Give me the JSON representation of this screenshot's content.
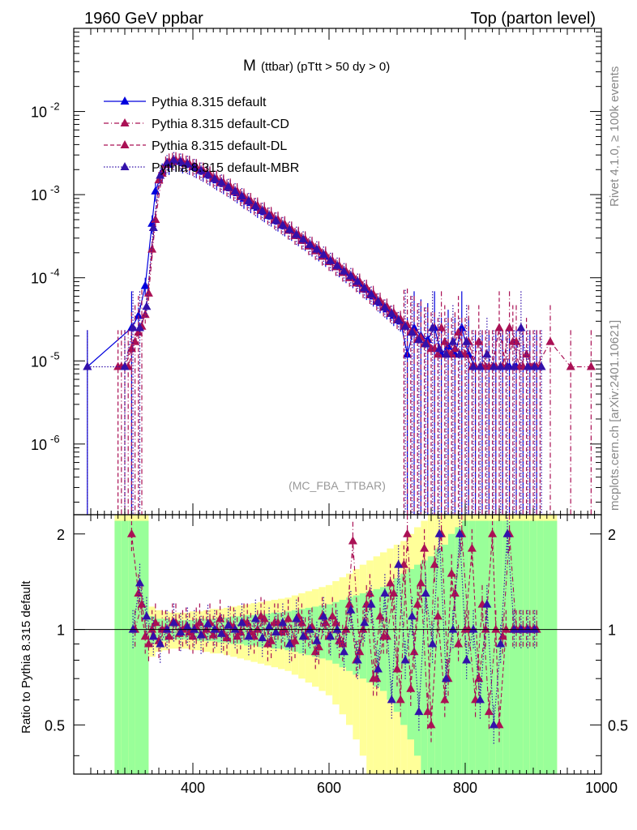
{
  "header": {
    "left_label": "1960 GeV ppbar",
    "right_label": "Top (parton level)"
  },
  "side_labels": {
    "rivet": "Rivet 4.1.0, ≥ 100k events",
    "mcplots": "mcplots.cern.ch [arXiv:2401.10621]"
  },
  "chart_data": {
    "type": "line",
    "title_main": "M",
    "title_sub": "(ttbar) (pTtt > 50 dy > 0)",
    "watermark": "(MC_FBA_TTBAR)",
    "xlabel": "",
    "ylabel": "",
    "xlim": [
      225,
      1000
    ],
    "ylim_log10": [
      -6.85,
      -1.0
    ],
    "x_ticks": [
      "400",
      "600",
      "800",
      "1000"
    ],
    "y_ticks": [
      "10^-6",
      "10^-5",
      "10^-4",
      "10^-3",
      "10^-2"
    ],
    "legend_position": "top-left",
    "series": [
      {
        "name": "Pythia 8.315 default",
        "color": "#0000dd",
        "style": "solid",
        "x": [
          245,
          310,
          320,
          330,
          340,
          345,
          355,
          365,
          375,
          385,
          395,
          405,
          415,
          425,
          435,
          445,
          455,
          465,
          475,
          485,
          495,
          505,
          515,
          525,
          535,
          545,
          555,
          565,
          575,
          585,
          595,
          605,
          615,
          625,
          635,
          645,
          655,
          665,
          675,
          685,
          695,
          705,
          715,
          725,
          735,
          745,
          755,
          765,
          775,
          785,
          795,
          805,
          815,
          825,
          835,
          845,
          855,
          865,
          875,
          885,
          895,
          905
        ],
        "y": [
          8.5e-06,
          2.5e-05,
          3.5e-05,
          8e-05,
          0.00045,
          0.0011,
          0.0019,
          0.0023,
          0.0025,
          0.0024,
          0.0023,
          0.0021,
          0.0019,
          0.0017,
          0.0015,
          0.00135,
          0.0012,
          0.00105,
          0.0009,
          0.0008,
          0.0007,
          0.00062,
          0.00055,
          0.00048,
          0.00042,
          0.00037,
          0.00032,
          0.00028,
          0.00024,
          0.00021,
          0.00018,
          0.00016,
          0.000135,
          0.000115,
          0.0001,
          8.5e-05,
          7.2e-05,
          6e-05,
          5e-05,
          4.2e-05,
          3.5e-05,
          3e-05,
          1.2e-05,
          2.5e-05,
          2e-05,
          1.8e-05,
          2.5e-05,
          1.2e-05,
          1.5e-05,
          1.2e-05,
          2.5e-05,
          1.2e-05,
          8.5e-06,
          8.5e-06,
          8.5e-06,
          8.5e-06,
          8.5e-06,
          8.5e-06,
          8.5e-06,
          8.5e-06,
          8.5e-06,
          8.5e-06
        ]
      },
      {
        "name": "Pythia 8.315 default-CD",
        "color": "#aa1155",
        "style": "dashdot",
        "x": [
          295,
          305,
          315,
          325,
          335,
          345,
          355,
          365,
          375,
          385,
          395,
          405,
          415,
          425,
          435,
          445,
          455,
          465,
          475,
          485,
          495,
          505,
          515,
          525,
          535,
          545,
          555,
          565,
          575,
          585,
          595,
          605,
          615,
          625,
          635,
          645,
          655,
          665,
          675,
          685,
          695,
          705,
          715,
          725,
          735,
          745,
          755,
          765,
          775,
          785,
          795,
          805,
          815,
          825,
          835,
          845,
          855,
          865,
          875,
          885,
          895,
          905,
          925,
          955,
          985
        ],
        "y": [
          8.5e-06,
          8.5e-06,
          1.7e-05,
          2.6e-05,
          6.5e-05,
          0.0005,
          0.0018,
          0.0025,
          0.0026,
          0.0025,
          0.00235,
          0.00215,
          0.00195,
          0.00175,
          0.00155,
          0.0014,
          0.00125,
          0.0011,
          0.00095,
          0.00084,
          0.00074,
          0.00065,
          0.00057,
          0.0005,
          0.00044,
          0.00038,
          0.00033,
          0.00029,
          0.00025,
          0.00022,
          0.00019,
          0.00016,
          0.00014,
          0.00012,
          0.000105,
          9e-05,
          7.6e-05,
          6.4e-05,
          5.3e-05,
          4.5e-05,
          3.8e-05,
          3.2e-05,
          2.7e-05,
          2.2e-05,
          1.9e-05,
          1.6e-05,
          1.4e-05,
          2.5e-05,
          1.2e-05,
          1.4e-05,
          1.2e-05,
          1.7e-05,
          8.5e-06,
          8.5e-06,
          8.5e-06,
          8.5e-06,
          8.5e-06,
          2.5e-05,
          1.7e-05,
          8.5e-06,
          8.5e-06,
          8.5e-06,
          1.7e-05,
          8.5e-06,
          8.5e-06
        ]
      },
      {
        "name": "Pythia 8.315 default-DL",
        "color": "#aa1155",
        "style": "dashed",
        "x": [
          290,
          300,
          310,
          320,
          330,
          340,
          350,
          360,
          370,
          380,
          390,
          400,
          410,
          420,
          430,
          440,
          450,
          460,
          470,
          480,
          490,
          500,
          510,
          520,
          530,
          540,
          550,
          560,
          570,
          580,
          590,
          600,
          610,
          620,
          630,
          640,
          650,
          660,
          670,
          680,
          690,
          700,
          710,
          720,
          730,
          740,
          750,
          760,
          770,
          780,
          790,
          800,
          810,
          820,
          830,
          840,
          850,
          860,
          870,
          880,
          890,
          900,
          910
        ],
        "y": [
          8.5e-06,
          8.5e-06,
          1.4e-05,
          2.2e-05,
          3.6e-05,
          0.00022,
          0.0015,
          0.0023,
          0.00255,
          0.0025,
          0.00235,
          0.00215,
          0.00195,
          0.00175,
          0.00155,
          0.00138,
          0.00122,
          0.00108,
          0.00094,
          0.00083,
          0.00073,
          0.00064,
          0.00056,
          0.00049,
          0.00043,
          0.00037,
          0.00032,
          0.00028,
          0.00024,
          0.00021,
          0.00018,
          0.000155,
          0.000135,
          0.000115,
          0.0001,
          8.6e-05,
          7.3e-05,
          6.2e-05,
          5.2e-05,
          4.4e-05,
          3.7e-05,
          3.1e-05,
          2.6e-05,
          2.2e-05,
          1.8e-05,
          1.6e-05,
          1.4e-05,
          1.2e-05,
          1.7e-05,
          1.2e-05,
          2.2e-05,
          1.2e-05,
          8.5e-06,
          1.7e-05,
          8.5e-06,
          8.5e-06,
          2.5e-05,
          8.5e-06,
          1.7e-05,
          8.5e-06,
          1.2e-05,
          8.5e-06,
          8.5e-06
        ]
      },
      {
        "name": "Pythia 8.315 default-MBR",
        "color": "#3311aa",
        "style": "dotted",
        "x": [
          245,
          300,
          312,
          322,
          332,
          342,
          352,
          362,
          372,
          382,
          392,
          402,
          412,
          422,
          432,
          442,
          452,
          462,
          472,
          482,
          492,
          502,
          512,
          522,
          532,
          542,
          552,
          562,
          572,
          582,
          592,
          602,
          612,
          622,
          632,
          642,
          652,
          662,
          672,
          682,
          692,
          702,
          712,
          722,
          732,
          742,
          752,
          762,
          772,
          782,
          792,
          802,
          812,
          822,
          832,
          842,
          852,
          862,
          872,
          882,
          892,
          902,
          912
        ],
        "y": [
          8.5e-06,
          8.5e-06,
          2.5e-05,
          2.5e-05,
          4.5e-05,
          0.0004,
          0.0017,
          0.0024,
          0.0026,
          0.0025,
          0.00235,
          0.00215,
          0.00195,
          0.00175,
          0.00155,
          0.0014,
          0.00124,
          0.0011,
          0.00096,
          0.00084,
          0.00073,
          0.00064,
          0.00056,
          0.00049,
          0.00043,
          0.00038,
          0.00033,
          0.00029,
          0.00025,
          0.00022,
          0.00019,
          0.00016,
          0.00014,
          0.00012,
          0.000105,
          9e-05,
          7.5e-05,
          6.3e-05,
          5.2e-05,
          4.4e-05,
          3.7e-05,
          3.1e-05,
          2.6e-05,
          2.2e-05,
          1.8e-05,
          1.6e-05,
          2.5e-05,
          1.4e-05,
          1.2e-05,
          1.7e-05,
          1.2e-05,
          1.7e-05,
          8.5e-06,
          8.5e-06,
          1.2e-05,
          8.5e-06,
          8.5e-06,
          8.5e-06,
          8.5e-06,
          2.5e-05,
          8.5e-06,
          8.5e-06,
          8.5e-06
        ]
      }
    ],
    "ratio": {
      "ylabel": "Ratio to Pythia 8.315 default",
      "ylim": [
        0.35,
        2.3
      ],
      "y_ticks": [
        "0.5",
        "1",
        "2"
      ],
      "x_ticks": [
        "400",
        "600",
        "800",
        "1000"
      ],
      "band_x": [
        290,
        300,
        310,
        320,
        330,
        340,
        350,
        360,
        370,
        380,
        390,
        400,
        410,
        420,
        430,
        440,
        450,
        460,
        470,
        480,
        490,
        500,
        510,
        520,
        530,
        540,
        550,
        560,
        570,
        580,
        590,
        600,
        610,
        620,
        630,
        640,
        650,
        660,
        670,
        680,
        690,
        700,
        710,
        720,
        730,
        740,
        750,
        760,
        770,
        780,
        790,
        800,
        810,
        820,
        830,
        840,
        850,
        860,
        870,
        880,
        890,
        900,
        910,
        920,
        930
      ],
      "band_green": [
        1.2,
        1.2,
        1.2,
        1.2,
        1.2,
        0.1,
        0.08,
        0.08,
        0.07,
        0.07,
        0.07,
        0.07,
        0.08,
        0.08,
        0.08,
        0.09,
        0.09,
        0.1,
        0.1,
        0.11,
        0.11,
        0.12,
        0.12,
        0.13,
        0.13,
        0.14,
        0.15,
        0.16,
        0.17,
        0.18,
        0.19,
        0.2,
        0.22,
        0.24,
        0.26,
        0.28,
        0.3,
        0.32,
        0.34,
        0.36,
        0.4,
        0.45,
        0.5,
        0.55,
        0.6,
        0.65,
        0.7,
        0.8,
        0.85,
        1.0,
        1.1,
        1.2,
        1.2,
        1.2,
        1.2,
        1.2,
        1.2,
        1.2,
        1.2,
        1.2,
        1.2,
        1.2,
        1.2,
        1.2,
        1.2
      ],
      "band_yellow": [
        2.2,
        2.2,
        2.2,
        2.2,
        2.2,
        0.18,
        0.15,
        0.14,
        0.13,
        0.13,
        0.13,
        0.14,
        0.14,
        0.15,
        0.16,
        0.16,
        0.17,
        0.18,
        0.19,
        0.2,
        0.21,
        0.22,
        0.23,
        0.24,
        0.25,
        0.26,
        0.28,
        0.3,
        0.32,
        0.34,
        0.36,
        0.38,
        0.42,
        0.46,
        0.5,
        0.55,
        0.6,
        0.65,
        0.7,
        0.75,
        0.8,
        0.85,
        0.9,
        1.0,
        1.1,
        1.2,
        1.3,
        1.4,
        1.5,
        1.7,
        2.0,
        2.2,
        2.2,
        2.2,
        2.2,
        2.2,
        2.2,
        2.2,
        2.2,
        2.2,
        2.2,
        2.2,
        2.2,
        2.2,
        2.2
      ],
      "series": [
        {
          "name": "default-CD",
          "color": "#aa1155",
          "style": "dashdot",
          "x": [
            315,
            325,
            335,
            345,
            355,
            365,
            375,
            385,
            395,
            405,
            415,
            425,
            435,
            445,
            455,
            465,
            475,
            485,
            495,
            505,
            515,
            525,
            535,
            545,
            555,
            565,
            575,
            585,
            595,
            605,
            615,
            625,
            635,
            645,
            655,
            665,
            675,
            685,
            695,
            705,
            715,
            725,
            735,
            745,
            755,
            765,
            775,
            785,
            795,
            805,
            815,
            825,
            835,
            845,
            855,
            865,
            875,
            885,
            895,
            905
          ],
          "y": [
            1.0,
            1.2,
            0.9,
            1.05,
            1.0,
            0.95,
            1.05,
            1.0,
            0.98,
            1.02,
            0.96,
            1.05,
            1.0,
            0.97,
            1.03,
            0.95,
            1.05,
            0.98,
            1.0,
            1.08,
            0.92,
            1.05,
            1.0,
            0.9,
            1.1,
            0.95,
            1.02,
            0.88,
            1.05,
            1.1,
            0.92,
            1.0,
            1.9,
            0.85,
            1.2,
            0.7,
            1.1,
            0.95,
            1.3,
            0.6,
            2.0,
            0.85,
            1.4,
            0.55,
            1.6,
            2.0,
            0.7,
            1.3,
            2.0,
            1.0,
            0.6,
            1.2,
            0.55,
            1.0,
            0.95,
            2.0,
            1.0,
            1.0,
            1.0,
            1.0
          ]
        },
        {
          "name": "default-DL",
          "color": "#aa1155",
          "style": "dashed",
          "x": [
            310,
            320,
            330,
            340,
            350,
            360,
            370,
            380,
            390,
            400,
            410,
            420,
            430,
            440,
            450,
            460,
            470,
            480,
            490,
            500,
            510,
            520,
            530,
            540,
            550,
            560,
            570,
            580,
            590,
            600,
            610,
            620,
            630,
            640,
            650,
            660,
            670,
            680,
            690,
            700,
            710,
            720,
            730,
            740,
            750,
            760,
            770,
            780,
            790,
            800,
            810,
            820,
            830,
            840,
            850,
            860,
            870,
            880,
            890,
            900
          ],
          "y": [
            2.0,
            1.3,
            0.95,
            1.0,
            0.92,
            1.0,
            1.05,
            0.97,
            1.02,
            0.95,
            1.05,
            1.0,
            0.96,
            1.08,
            0.94,
            1.02,
            0.98,
            1.05,
            0.95,
            1.1,
            0.9,
            1.05,
            0.98,
            1.08,
            0.92,
            1.05,
            1.0,
            0.85,
            1.1,
            0.95,
            1.05,
            0.9,
            1.2,
            0.8,
            1.0,
            1.3,
            0.7,
            0.95,
            1.4,
            0.75,
            1.6,
            0.65,
            1.2,
            1.8,
            0.5,
            1.1,
            0.6,
            1.5,
            0.9,
            1.0,
            1.8,
            0.7,
            1.0,
            2.0,
            0.5,
            1.0,
            1.0,
            1.0,
            1.0,
            1.0
          ]
        },
        {
          "name": "default-MBR",
          "color": "#3311aa",
          "style": "dotted",
          "x": [
            312,
            322,
            332,
            342,
            352,
            362,
            372,
            382,
            392,
            402,
            412,
            422,
            432,
            442,
            452,
            462,
            472,
            482,
            492,
            502,
            512,
            522,
            532,
            542,
            552,
            562,
            572,
            582,
            592,
            602,
            612,
            622,
            632,
            642,
            652,
            662,
            672,
            682,
            692,
            702,
            712,
            722,
            732,
            742,
            752,
            762,
            772,
            782,
            792,
            802,
            812,
            822,
            832,
            842,
            852,
            862,
            872,
            882,
            892,
            902
          ],
          "y": [
            1.0,
            1.4,
            1.1,
            0.95,
            0.9,
            1.0,
            1.05,
            0.98,
            1.02,
            1.0,
            0.96,
            1.04,
            1.0,
            0.97,
            1.03,
            1.0,
            1.05,
            0.95,
            1.08,
            0.94,
            1.02,
            0.98,
            1.05,
            0.9,
            1.08,
            0.95,
            1.0,
            0.92,
            1.1,
            0.95,
            1.0,
            0.85,
            1.15,
            0.8,
            1.05,
            1.2,
            0.75,
            1.3,
            0.6,
            1.6,
            0.8,
            1.1,
            0.55,
            1.3,
            0.9,
            2.0,
            0.7,
            1.0,
            2.0,
            0.8,
            1.0,
            0.6,
            1.2,
            0.5,
            0.9,
            2.0,
            1.0,
            1.0,
            1.0,
            1.0
          ]
        }
      ]
    }
  }
}
